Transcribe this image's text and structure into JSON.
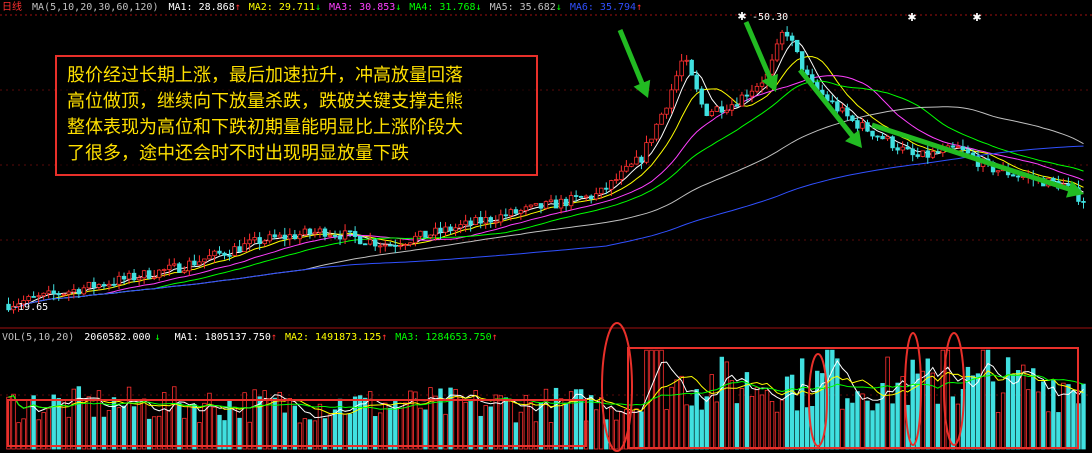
{
  "price_header": {
    "title": "日线",
    "ma_params": "MA(5,10,20,30,60,120)",
    "ma": [
      {
        "label": "MA1:",
        "value": "28.868",
        "arrow": "↑",
        "color": "#ffffff"
      },
      {
        "label": "MA2:",
        "value": "29.711",
        "arrow": "↓",
        "color": "#ffff00"
      },
      {
        "label": "MA3:",
        "value": "30.853",
        "arrow": "↓",
        "color": "#ff40ff"
      },
      {
        "label": "MA4:",
        "value": "31.768",
        "arrow": "↓",
        "color": "#00ff00"
      },
      {
        "label": "MA5:",
        "value": "35.682",
        "arrow": "↓",
        "color": "#c0c0c0"
      },
      {
        "label": "MA6:",
        "value": "35.794",
        "arrow": "↑",
        "color": "#3050ff"
      }
    ]
  },
  "volume_header": {
    "params": "VOL(5,10,20)",
    "value": "2060582.000",
    "value_arrow": "↓",
    "ma": [
      {
        "label": "MA1:",
        "value": "1805137.750",
        "arrow": "↑",
        "color": "#ffffff"
      },
      {
        "label": "MA2:",
        "value": "1491873.125",
        "arrow": "↑",
        "color": "#ffff00"
      },
      {
        "label": "MA3:",
        "value": "1284653.750",
        "arrow": "↑",
        "color": "#00ff00"
      }
    ]
  },
  "annotation": {
    "lines": [
      "股价经过长期上涨，最后加速拉升，冲高放量回落",
      "高位做顶，继续向下放量杀跌，跌破关键支撑走熊",
      "整体表现为高位和下跌初期量能明显比上涨阶段大",
      "了很多，途中还会时不时出现明显放量下跌"
    ]
  },
  "chart_data": {
    "type": "candlestick_with_volume",
    "price_high_label": "50.30",
    "price_low_label": "19.65",
    "high": 50.3,
    "low": 19.65,
    "moving_averages_last": {
      "MA1": 28.868,
      "MA2": 29.711,
      "MA3": 30.853,
      "MA4": 31.768,
      "MA5": 35.682,
      "MA6": 35.794
    },
    "volume_last": 2060582.0,
    "volume_ma_last": {
      "MA1": 1805137.75,
      "MA2": 1491873.125,
      "MA3": 1284653.75
    },
    "colors": {
      "up": "#ff3030",
      "down": "#40e0e0",
      "arrow": "#22bb22",
      "box": "#e8302a"
    }
  }
}
